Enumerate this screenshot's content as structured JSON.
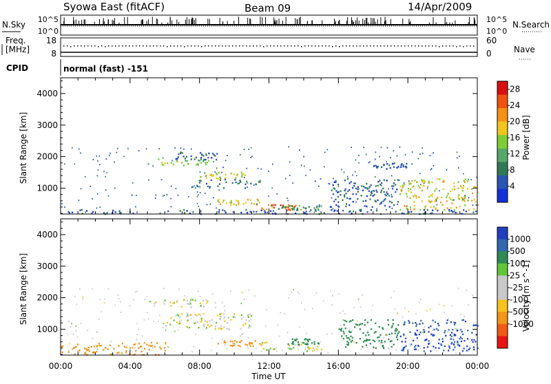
{
  "header": {
    "station": "Syowa East (fitACF)",
    "beam": "Beam 09",
    "date": "14/Apr/2009"
  },
  "status_panels": {
    "nsky": {
      "left_label": "N.Sky",
      "right_label": "N.Search",
      "left_ticks": [
        "10^5",
        "10^0"
      ],
      "right_ticks": [
        "10^5",
        "10^0"
      ]
    },
    "freq": {
      "left_label_1": "Freq.",
      "left_label_2": "[MHz]",
      "right_label": "Nave",
      "left_ticks": [
        "18",
        "8"
      ],
      "right_ticks": [
        "60",
        "0"
      ]
    },
    "cpid": {
      "label": "CPID",
      "value": "normal (fast) -151"
    }
  },
  "colors": {
    "power_scale": [
      "#1530d8",
      "#2a55b5",
      "#2f7a55",
      "#57a86a",
      "#7fcc35",
      "#f2c51d",
      "#f59214",
      "#f05210",
      "#d81010"
    ],
    "velocity_scale": [
      "#2040c0",
      "#3168b0",
      "#2f8a55",
      "#62c43a",
      "#c8c8c8",
      "#c8c8c8",
      "#f6c21c",
      "#f3951a",
      "#f05a14",
      "#e81414"
    ]
  },
  "chart_data": [
    {
      "type": "heatmap",
      "title": "Power",
      "xlabel": "Time UT",
      "ylabel": "Slant Range [km]",
      "colorbar_label": "Power [dB]",
      "xlim": [
        "00:00",
        "24:00"
      ],
      "x_ticks": [
        "00:00",
        "04:00",
        "08:00",
        "12:00",
        "16:00",
        "20:00",
        "00:00"
      ],
      "ylim": [
        180,
        4500
      ],
      "y_ticks": [
        1000,
        2000,
        3000,
        4000
      ],
      "colorbar_ticks": [
        4,
        8,
        12,
        16,
        20,
        24,
        28
      ],
      "colorbar_range": [
        0,
        30
      ],
      "regions": [
        {
          "t0": 5.0,
          "t1": 8.5,
          "r0": 1700,
          "r1": 1950,
          "value": 14
        },
        {
          "t0": 8.0,
          "t1": 11.0,
          "r0": 1300,
          "r1": 1500,
          "value": 16
        },
        {
          "t0": 6.0,
          "t1": 9.0,
          "r0": 1900,
          "r1": 2150,
          "value": 6
        },
        {
          "t0": 7.5,
          "t1": 11.5,
          "r0": 1000,
          "r1": 1300,
          "value": 8
        },
        {
          "t0": 9.0,
          "t1": 11.5,
          "r0": 450,
          "r1": 650,
          "value": 18
        },
        {
          "t0": 11.5,
          "t1": 13.5,
          "r0": 300,
          "r1": 500,
          "value": 24
        },
        {
          "t0": 12.5,
          "t1": 15.0,
          "r0": 300,
          "r1": 450,
          "value": 10
        },
        {
          "t0": 15.5,
          "t1": 19.5,
          "r0": 400,
          "r1": 1300,
          "value": 6
        },
        {
          "t0": 18.0,
          "t1": 20.0,
          "r0": 1600,
          "r1": 1800,
          "value": 5
        },
        {
          "t0": 19.5,
          "t1": 24.0,
          "r0": 300,
          "r1": 1300,
          "value": 18
        },
        {
          "t0": 0.0,
          "t1": 24.0,
          "r0": 180,
          "r1": 320,
          "value": 5
        }
      ]
    },
    {
      "type": "heatmap",
      "title": "Velocity",
      "xlabel": "Time UT",
      "ylabel": "Slant Range [km]",
      "colorbar_label": "Velocity [m s^-1]",
      "xlim": [
        "00:00",
        "24:00"
      ],
      "x_ticks": [
        "00:00",
        "04:00",
        "08:00",
        "12:00",
        "16:00",
        "20:00",
        "00:00"
      ],
      "ylim": [
        180,
        4500
      ],
      "y_ticks": [
        1000,
        2000,
        3000,
        4000
      ],
      "colorbar_ticks": [
        1000,
        500,
        100,
        25,
        -25,
        -100,
        -500,
        -1000
      ],
      "regions": [
        {
          "t0": 5.0,
          "t1": 8.5,
          "r0": 1700,
          "r1": 1950,
          "value": 0
        },
        {
          "t0": 6.0,
          "t1": 11.0,
          "r0": 1000,
          "r1": 1500,
          "value": 0
        },
        {
          "t0": 9.0,
          "t1": 11.5,
          "r0": 450,
          "r1": 650,
          "value": -150
        },
        {
          "t0": 11.5,
          "t1": 15.0,
          "r0": 300,
          "r1": 600,
          "value": 0
        },
        {
          "t0": 13.0,
          "t1": 15.0,
          "r0": 500,
          "r1": 700,
          "value": 150
        },
        {
          "t0": 16.0,
          "t1": 19.5,
          "r0": 400,
          "r1": 1300,
          "value": 150
        },
        {
          "t0": 19.5,
          "t1": 24.0,
          "r0": 300,
          "r1": 1300,
          "value": 600
        },
        {
          "t0": 0.0,
          "t1": 6.0,
          "r0": 180,
          "r1": 600,
          "value": -150
        }
      ]
    }
  ]
}
